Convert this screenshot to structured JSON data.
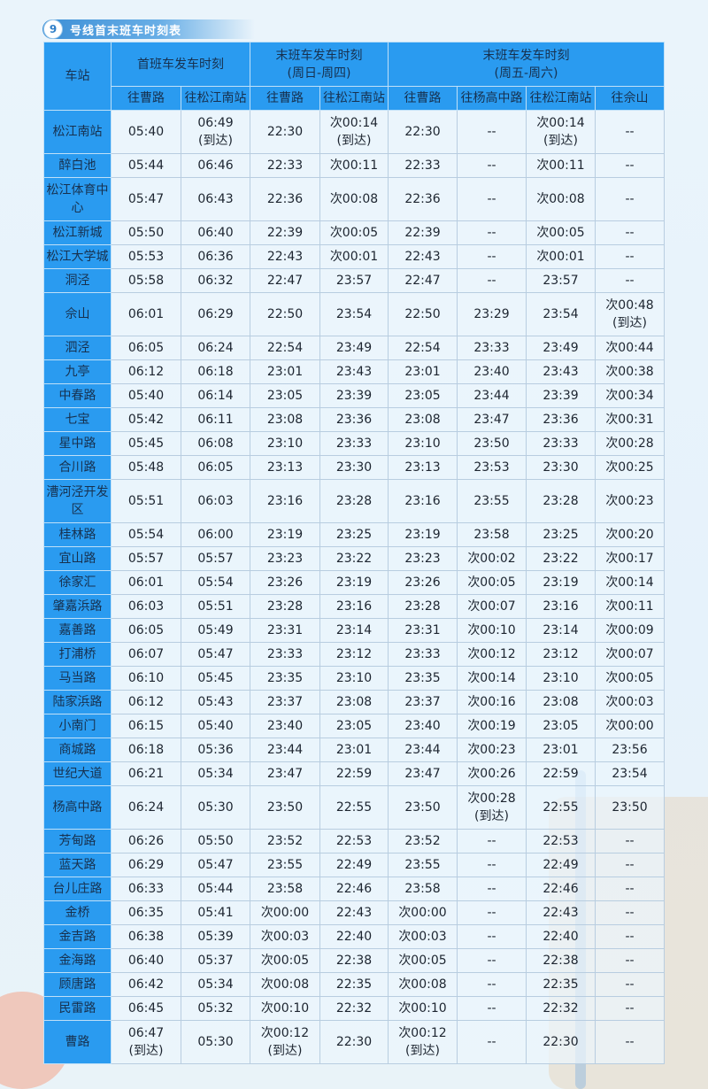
{
  "title": {
    "line_number": "9",
    "text": "号线首末班车时刻表"
  },
  "header": {
    "station": "车站",
    "groups": [
      "首班车发车时刻",
      "末班车发车时刻\n(周日-周四)",
      "末班车发车时刻\n(周五-周六)"
    ],
    "directions": [
      "往曹路",
      "往松江南站",
      "往曹路",
      "往松江南站",
      "往曹路",
      "往杨高中路",
      "往松江南站",
      "往佘山"
    ]
  },
  "rows": [
    [
      "松江南站",
      "05:40",
      "06:49\n(到达)",
      "22:30",
      "次00:14\n(到达)",
      "22:30",
      "--",
      "次00:14\n(到达)",
      "--"
    ],
    [
      "醉白池",
      "05:44",
      "06:46",
      "22:33",
      "次00:11",
      "22:33",
      "--",
      "次00:11",
      "--"
    ],
    [
      "松江体育中\n心",
      "05:47",
      "06:43",
      "22:36",
      "次00:08",
      "22:36",
      "--",
      "次00:08",
      "--"
    ],
    [
      "松江新城",
      "05:50",
      "06:40",
      "22:39",
      "次00:05",
      "22:39",
      "--",
      "次00:05",
      "--"
    ],
    [
      "松江大学城",
      "05:53",
      "06:36",
      "22:43",
      "次00:01",
      "22:43",
      "--",
      "次00:01",
      "--"
    ],
    [
      "洞泾",
      "05:58",
      "06:32",
      "22:47",
      "23:57",
      "22:47",
      "--",
      "23:57",
      "--"
    ],
    [
      "佘山",
      "06:01",
      "06:29",
      "22:50",
      "23:54",
      "22:50",
      "23:29",
      "23:54",
      "次00:48\n(到达)"
    ],
    [
      "泗泾",
      "06:05",
      "06:24",
      "22:54",
      "23:49",
      "22:54",
      "23:33",
      "23:49",
      "次00:44"
    ],
    [
      "九亭",
      "06:12",
      "06:18",
      "23:01",
      "23:43",
      "23:01",
      "23:40",
      "23:43",
      "次00:38"
    ],
    [
      "中春路",
      "05:40",
      "06:14",
      "23:05",
      "23:39",
      "23:05",
      "23:44",
      "23:39",
      "次00:34"
    ],
    [
      "七宝",
      "05:42",
      "06:11",
      "23:08",
      "23:36",
      "23:08",
      "23:47",
      "23:36",
      "次00:31"
    ],
    [
      "星中路",
      "05:45",
      "06:08",
      "23:10",
      "23:33",
      "23:10",
      "23:50",
      "23:33",
      "次00:28"
    ],
    [
      "合川路",
      "05:48",
      "06:05",
      "23:13",
      "23:30",
      "23:13",
      "23:53",
      "23:30",
      "次00:25"
    ],
    [
      "漕河泾开发\n区",
      "05:51",
      "06:03",
      "23:16",
      "23:28",
      "23:16",
      "23:55",
      "23:28",
      "次00:23"
    ],
    [
      "桂林路",
      "05:54",
      "06:00",
      "23:19",
      "23:25",
      "23:19",
      "23:58",
      "23:25",
      "次00:20"
    ],
    [
      "宜山路",
      "05:57",
      "05:57",
      "23:23",
      "23:22",
      "23:23",
      "次00:02",
      "23:22",
      "次00:17"
    ],
    [
      "徐家汇",
      "06:01",
      "05:54",
      "23:26",
      "23:19",
      "23:26",
      "次00:05",
      "23:19",
      "次00:14"
    ],
    [
      "肇嘉浜路",
      "06:03",
      "05:51",
      "23:28",
      "23:16",
      "23:28",
      "次00:07",
      "23:16",
      "次00:11"
    ],
    [
      "嘉善路",
      "06:05",
      "05:49",
      "23:31",
      "23:14",
      "23:31",
      "次00:10",
      "23:14",
      "次00:09"
    ],
    [
      "打浦桥",
      "06:07",
      "05:47",
      "23:33",
      "23:12",
      "23:33",
      "次00:12",
      "23:12",
      "次00:07"
    ],
    [
      "马当路",
      "06:10",
      "05:45",
      "23:35",
      "23:10",
      "23:35",
      "次00:14",
      "23:10",
      "次00:05"
    ],
    [
      "陆家浜路",
      "06:12",
      "05:43",
      "23:37",
      "23:08",
      "23:37",
      "次00:16",
      "23:08",
      "次00:03"
    ],
    [
      "小南门",
      "06:15",
      "05:40",
      "23:40",
      "23:05",
      "23:40",
      "次00:19",
      "23:05",
      "次00:00"
    ],
    [
      "商城路",
      "06:18",
      "05:36",
      "23:44",
      "23:01",
      "23:44",
      "次00:23",
      "23:01",
      "23:56"
    ],
    [
      "世纪大道",
      "06:21",
      "05:34",
      "23:47",
      "22:59",
      "23:47",
      "次00:26",
      "22:59",
      "23:54"
    ],
    [
      "杨高中路",
      "06:24",
      "05:30",
      "23:50",
      "22:55",
      "23:50",
      "次00:28\n(到达)",
      "22:55",
      "23:50"
    ],
    [
      "芳甸路",
      "06:26",
      "05:50",
      "23:52",
      "22:53",
      "23:52",
      "--",
      "22:53",
      "--"
    ],
    [
      "蓝天路",
      "06:29",
      "05:47",
      "23:55",
      "22:49",
      "23:55",
      "--",
      "22:49",
      "--"
    ],
    [
      "台儿庄路",
      "06:33",
      "05:44",
      "23:58",
      "22:46",
      "23:58",
      "--",
      "22:46",
      "--"
    ],
    [
      "金桥",
      "06:35",
      "05:41",
      "次00:00",
      "22:43",
      "次00:00",
      "--",
      "22:43",
      "--"
    ],
    [
      "金吉路",
      "06:38",
      "05:39",
      "次00:03",
      "22:40",
      "次00:03",
      "--",
      "22:40",
      "--"
    ],
    [
      "金海路",
      "06:40",
      "05:37",
      "次00:05",
      "22:38",
      "次00:05",
      "--",
      "22:38",
      "--"
    ],
    [
      "顾唐路",
      "06:42",
      "05:34",
      "次00:08",
      "22:35",
      "次00:08",
      "--",
      "22:35",
      "--"
    ],
    [
      "民雷路",
      "06:45",
      "05:32",
      "次00:10",
      "22:32",
      "次00:10",
      "--",
      "22:32",
      "--"
    ],
    [
      "曹路",
      "06:47\n(到达)",
      "05:30",
      "次00:12\n(到达)",
      "22:30",
      "次00:12\n(到达)",
      "--",
      "22:30",
      "--"
    ]
  ],
  "colors": {
    "header_bg": "#2a9bf0",
    "cell_bg": "#ecf5fc",
    "title_bar": "#3c8fd6"
  }
}
